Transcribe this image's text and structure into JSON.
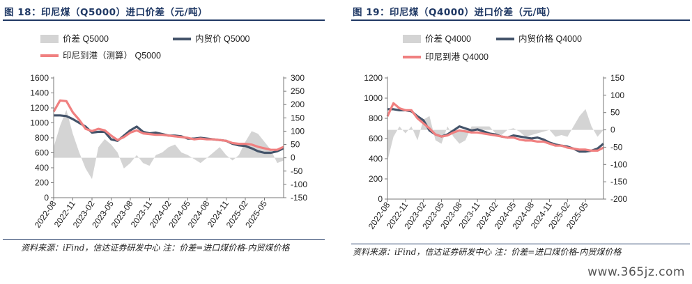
{
  "charts": [
    {
      "title": "图 18：印尼煤（Q5000）进口价差（元/吨）",
      "source": "资料来源：iFind，信达证券研发中心 注：价差=进口煤价格-内贸煤价格",
      "legend": [
        "价差 Q5000",
        "内贸价 Q5000",
        "印尼到港（测算） Q5000"
      ]
    },
    {
      "title": "图 19：印尼煤（Q4000）进口价差（元/吨）",
      "source": "资料来源：iFind，信达证券研发中心 注：价差=进口煤价格-内贸煤价格",
      "legend": [
        "价差 Q4000",
        "内贸价格 Q4000",
        "印尼到港 Q4000"
      ]
    }
  ],
  "watermark": "www.365jz.com",
  "colors": {
    "spread": "#d4d4d4",
    "domestic": "#44546a",
    "import": "#f08080",
    "title": "#1f3864"
  },
  "chart_data": [
    {
      "type": "line",
      "legend_position": "top",
      "grid": false,
      "x_ticks": [
        "2022-08",
        "2022-11",
        "2023-02",
        "2023-05",
        "2023-08",
        "2023-11",
        "2024-02",
        "2024-05",
        "2024-08",
        "2024-11",
        "2025-02",
        "2025-05"
      ],
      "x_range": [
        "2022-08",
        "2025-08"
      ],
      "y_left": {
        "range": [
          0,
          1600
        ],
        "ticks": [
          0,
          200,
          400,
          600,
          800,
          1000,
          1200,
          1400,
          1600
        ]
      },
      "y_right": {
        "range": [
          -150,
          300
        ],
        "ticks": [
          -150,
          -100,
          -50,
          0,
          50,
          100,
          150,
          200,
          250,
          300
        ]
      },
      "series": [
        {
          "name": "价差 Q5000",
          "kind": "area",
          "axis": "right",
          "x": [
            "2022-08",
            "2022-09",
            "2022-10",
            "2022-11",
            "2022-12",
            "2023-01",
            "2023-02",
            "2023-03",
            "2023-04",
            "2023-05",
            "2023-06",
            "2023-07",
            "2023-08",
            "2023-09",
            "2023-10",
            "2023-11",
            "2023-12",
            "2024-01",
            "2024-02",
            "2024-03",
            "2024-04",
            "2024-05",
            "2024-06",
            "2024-07",
            "2024-08",
            "2024-09",
            "2024-10",
            "2024-11",
            "2024-12",
            "2025-01",
            "2025-02",
            "2025-03",
            "2025-04",
            "2025-05",
            "2025-06",
            "2025-07",
            "2025-08"
          ],
          "values": [
            40,
            120,
            180,
            90,
            20,
            -40,
            -80,
            40,
            70,
            50,
            20,
            -40,
            -20,
            10,
            -20,
            -30,
            10,
            20,
            40,
            50,
            20,
            10,
            -5,
            -20,
            0,
            20,
            40,
            10,
            -10,
            10,
            60,
            100,
            90,
            60,
            30,
            -20,
            -10
          ]
        },
        {
          "name": "内贸价 Q5000",
          "kind": "line",
          "axis": "left",
          "x": [
            "2022-08",
            "2022-09",
            "2022-10",
            "2022-11",
            "2022-12",
            "2023-01",
            "2023-02",
            "2023-03",
            "2023-04",
            "2023-05",
            "2023-06",
            "2023-07",
            "2023-08",
            "2023-09",
            "2023-10",
            "2023-11",
            "2023-12",
            "2024-01",
            "2024-02",
            "2024-03",
            "2024-04",
            "2024-05",
            "2024-06",
            "2024-07",
            "2024-08",
            "2024-09",
            "2024-10",
            "2024-11",
            "2024-12",
            "2025-01",
            "2025-02",
            "2025-03",
            "2025-04",
            "2025-05",
            "2025-06",
            "2025-07",
            "2025-08"
          ],
          "values": [
            1100,
            1100,
            1090,
            1050,
            1000,
            950,
            870,
            880,
            880,
            780,
            760,
            830,
            900,
            950,
            880,
            860,
            870,
            850,
            830,
            830,
            820,
            790,
            790,
            800,
            790,
            780,
            770,
            760,
            720,
            700,
            690,
            660,
            620,
            600,
            600,
            620,
            660
          ]
        },
        {
          "name": "印尼到港（测算） Q5000",
          "kind": "line",
          "axis": "left",
          "x": [
            "2022-08",
            "2022-09",
            "2022-10",
            "2022-11",
            "2022-12",
            "2023-01",
            "2023-02",
            "2023-03",
            "2023-04",
            "2023-05",
            "2023-06",
            "2023-07",
            "2023-08",
            "2023-09",
            "2023-10",
            "2023-11",
            "2023-12",
            "2024-01",
            "2024-02",
            "2024-03",
            "2024-04",
            "2024-05",
            "2024-06",
            "2024-07",
            "2024-08",
            "2024-09",
            "2024-10",
            "2024-11",
            "2024-12",
            "2025-01",
            "2025-02",
            "2025-03",
            "2025-04",
            "2025-05",
            "2025-06",
            "2025-07",
            "2025-08"
          ],
          "values": [
            1150,
            1300,
            1290,
            1140,
            1040,
            920,
            890,
            920,
            900,
            830,
            770,
            810,
            870,
            900,
            860,
            850,
            840,
            840,
            830,
            820,
            810,
            800,
            780,
            790,
            780,
            780,
            770,
            760,
            730,
            720,
            720,
            710,
            680,
            660,
            640,
            640,
            680
          ]
        }
      ]
    },
    {
      "type": "line",
      "legend_position": "top",
      "grid": false,
      "x_ticks": [
        "2022-08",
        "2022-11",
        "2023-02",
        "2023-05",
        "2023-08",
        "2023-11",
        "2024-02",
        "2024-05",
        "2024-08",
        "2024-11",
        "2025-02",
        "2025-05"
      ],
      "x_range": [
        "2022-08",
        "2025-08"
      ],
      "y_left": {
        "range": [
          0,
          1200
        ],
        "ticks": [
          0,
          200,
          400,
          600,
          800,
          1000,
          1200
        ]
      },
      "y_right": {
        "range": [
          -200,
          150
        ],
        "ticks": [
          -200,
          -150,
          -100,
          -50,
          0,
          50,
          100,
          150
        ]
      },
      "series": [
        {
          "name": "价差 Q4000",
          "kind": "area",
          "axis": "right",
          "x": [
            "2022-08",
            "2022-09",
            "2022-10",
            "2022-11",
            "2022-12",
            "2023-01",
            "2023-02",
            "2023-03",
            "2023-04",
            "2023-05",
            "2023-06",
            "2023-07",
            "2023-08",
            "2023-09",
            "2023-10",
            "2023-11",
            "2023-12",
            "2024-01",
            "2024-02",
            "2024-03",
            "2024-04",
            "2024-05",
            "2024-06",
            "2024-07",
            "2024-08",
            "2024-09",
            "2024-10",
            "2024-11",
            "2024-12",
            "2025-01",
            "2025-02",
            "2025-03",
            "2025-04",
            "2025-05",
            "2025-06",
            "2025-07",
            "2025-08"
          ],
          "values": [
            -90,
            -20,
            10,
            -10,
            10,
            -30,
            30,
            40,
            -30,
            -40,
            10,
            -20,
            -40,
            -30,
            10,
            10,
            10,
            10,
            -10,
            -15,
            0,
            5,
            -5,
            -20,
            -15,
            -10,
            -5,
            0,
            -20,
            -15,
            -20,
            10,
            40,
            60,
            10,
            -20,
            0
          ]
        },
        {
          "name": "内贸价格 Q4000",
          "kind": "line",
          "axis": "left",
          "x": [
            "2022-08",
            "2022-09",
            "2022-10",
            "2022-11",
            "2022-12",
            "2023-01",
            "2023-02",
            "2023-03",
            "2023-04",
            "2023-05",
            "2023-06",
            "2023-07",
            "2023-08",
            "2023-09",
            "2023-10",
            "2023-11",
            "2023-12",
            "2024-01",
            "2024-02",
            "2024-03",
            "2024-04",
            "2024-05",
            "2024-06",
            "2024-07",
            "2024-08",
            "2024-09",
            "2024-10",
            "2024-11",
            "2024-12",
            "2025-01",
            "2025-02",
            "2025-03",
            "2025-04",
            "2025-05",
            "2025-06",
            "2025-07",
            "2025-08"
          ],
          "values": [
            890,
            890,
            880,
            880,
            870,
            820,
            780,
            680,
            640,
            620,
            640,
            680,
            720,
            700,
            680,
            690,
            670,
            650,
            640,
            620,
            610,
            630,
            620,
            610,
            600,
            610,
            590,
            560,
            540,
            530,
            520,
            500,
            470,
            470,
            480,
            500,
            550
          ]
        },
        {
          "name": "印尼到港 Q4000",
          "kind": "line",
          "axis": "left",
          "x": [
            "2022-08",
            "2022-09",
            "2022-10",
            "2022-11",
            "2022-12",
            "2023-01",
            "2023-02",
            "2023-03",
            "2023-04",
            "2023-05",
            "2023-06",
            "2023-07",
            "2023-08",
            "2023-09",
            "2023-10",
            "2023-11",
            "2023-12",
            "2024-01",
            "2024-02",
            "2024-03",
            "2024-04",
            "2024-05",
            "2024-06",
            "2024-07",
            "2024-08",
            "2024-09",
            "2024-10",
            "2024-11",
            "2024-12",
            "2025-01",
            "2025-02",
            "2025-03",
            "2025-04",
            "2025-05",
            "2025-06",
            "2025-07",
            "2025-08"
          ],
          "values": [
            820,
            950,
            900,
            880,
            880,
            800,
            750,
            700,
            640,
            620,
            630,
            660,
            680,
            670,
            660,
            660,
            650,
            640,
            630,
            620,
            610,
            610,
            590,
            580,
            580,
            570,
            570,
            550,
            530,
            530,
            510,
            500,
            490,
            490,
            480,
            480,
            510
          ]
        }
      ]
    }
  ]
}
